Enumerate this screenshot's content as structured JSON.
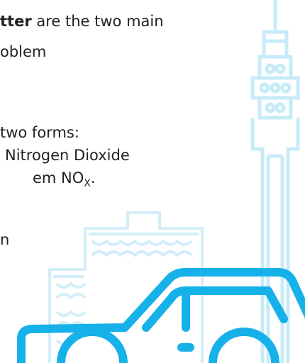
{
  "text": {
    "lines": [
      {
        "segments": [
          {
            "text": "tter",
            "bold": true
          },
          {
            "text": " are the two main"
          }
        ]
      },
      {
        "segments": [
          {
            "text": "oblem"
          }
        ]
      },
      {
        "segments": [
          {
            "text": "two forms:"
          }
        ]
      },
      {
        "segments": [
          {
            "text": "Nitrogen Dioxide"
          }
        ]
      },
      {
        "segments": [
          {
            "text": "em NO"
          },
          {
            "text": "X",
            "sub": true
          },
          {
            "text": "."
          }
        ]
      },
      {
        "segments": [
          {
            "text": "n"
          }
        ]
      }
    ]
  }
}
